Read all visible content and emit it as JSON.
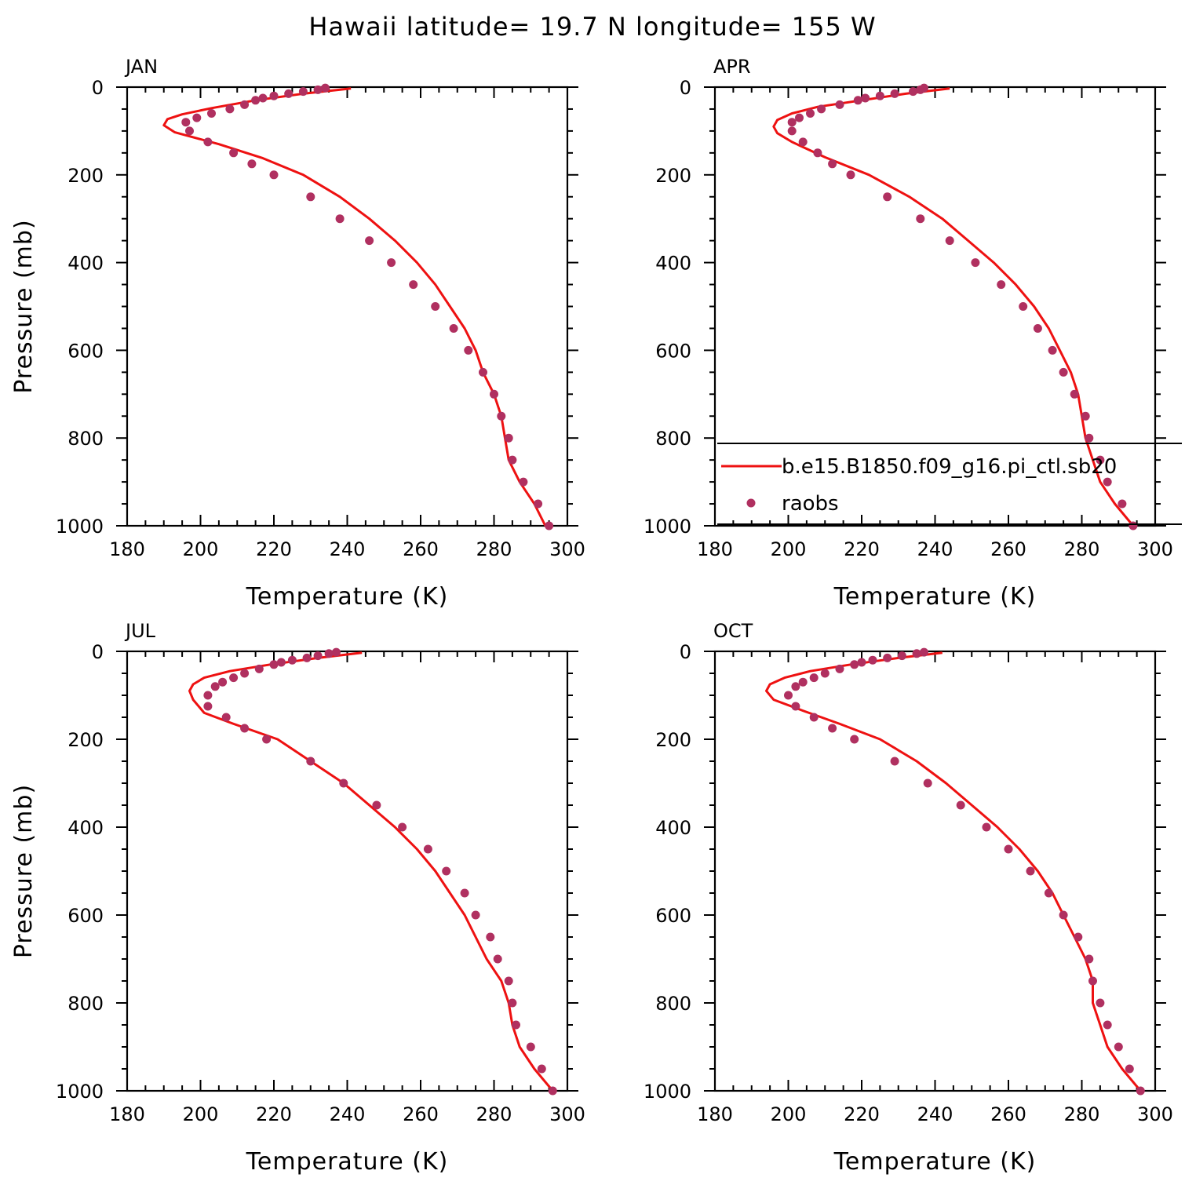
{
  "figure": {
    "title": "Hawaii  latitude= 19.7 N longitude= 155 W"
  },
  "colors": {
    "model": "#ee1111",
    "obs": "#b03060"
  },
  "chart_data": [
    {
      "type": "scatter",
      "panel": "JAN",
      "xlabel": "Temperature (K)",
      "ylabel": "Pressure (mb)",
      "xlim": [
        180,
        300
      ],
      "ylim": [
        1000,
        0
      ],
      "y_inverted": true,
      "xticks": [
        180,
        200,
        220,
        240,
        260,
        280,
        300
      ],
      "yticks": [
        0,
        200,
        400,
        600,
        800,
        1000
      ],
      "series": [
        {
          "kind": "line",
          "points": [
            [
              241,
              3
            ],
            [
              228,
              15
            ],
            [
              215,
              30
            ],
            [
              203,
              48
            ],
            [
              195,
              62
            ],
            [
              191,
              73
            ],
            [
              190,
              87
            ],
            [
              193,
              103
            ],
            [
              205,
              130
            ],
            [
              217,
              162
            ],
            [
              228,
              200
            ],
            [
              238,
              250
            ],
            [
              246,
              300
            ],
            [
              253,
              350
            ],
            [
              259,
              400
            ],
            [
              264,
              450
            ],
            [
              268,
              500
            ],
            [
              272,
              550
            ],
            [
              275,
              600
            ],
            [
              277,
              650
            ],
            [
              280,
              700
            ],
            [
              282,
              750
            ],
            [
              283,
              800
            ],
            [
              284,
              850
            ],
            [
              287,
              900
            ],
            [
              291,
              950
            ],
            [
              294,
              1000
            ]
          ]
        },
        {
          "kind": "points",
          "points": [
            [
              234,
              2
            ],
            [
              232,
              6
            ],
            [
              228,
              10
            ],
            [
              224,
              15
            ],
            [
              220,
              20
            ],
            [
              217,
              25
            ],
            [
              215,
              30
            ],
            [
              212,
              40
            ],
            [
              208,
              50
            ],
            [
              203,
              60
            ],
            [
              199,
              70
            ],
            [
              196,
              80
            ],
            [
              197,
              100
            ],
            [
              202,
              125
            ],
            [
              209,
              150
            ],
            [
              214,
              175
            ],
            [
              220,
              200
            ],
            [
              230,
              250
            ],
            [
              238,
              300
            ],
            [
              246,
              350
            ],
            [
              252,
              400
            ],
            [
              258,
              450
            ],
            [
              264,
              500
            ],
            [
              269,
              550
            ],
            [
              273,
              600
            ],
            [
              277,
              650
            ],
            [
              280,
              700
            ],
            [
              282,
              750
            ],
            [
              284,
              800
            ],
            [
              285,
              850
            ],
            [
              288,
              900
            ],
            [
              292,
              950
            ],
            [
              295,
              1000
            ]
          ]
        }
      ]
    },
    {
      "type": "scatter",
      "panel": "APR",
      "xlabel": "Temperature (K)",
      "ylabel": "",
      "xlim": [
        180,
        300
      ],
      "ylim": [
        1000,
        0
      ],
      "y_inverted": true,
      "xticks": [
        180,
        200,
        220,
        240,
        260,
        280,
        300
      ],
      "yticks": [
        0,
        200,
        400,
        600,
        800,
        1000
      ],
      "series": [
        {
          "kind": "line",
          "name": "b.e15.B1850.f09_g16.pi_ctl.sb20",
          "points": [
            [
              244,
              3
            ],
            [
              232,
              15
            ],
            [
              220,
              30
            ],
            [
              208,
              45
            ],
            [
              201,
              60
            ],
            [
              197,
              75
            ],
            [
              196,
              90
            ],
            [
              197,
              105
            ],
            [
              201,
              125
            ],
            [
              210,
              160
            ],
            [
              222,
              200
            ],
            [
              233,
              250
            ],
            [
              242,
              300
            ],
            [
              249,
              350
            ],
            [
              256,
              400
            ],
            [
              262,
              450
            ],
            [
              267,
              500
            ],
            [
              271,
              550
            ],
            [
              274,
              600
            ],
            [
              277,
              650
            ],
            [
              279,
              700
            ],
            [
              280,
              750
            ],
            [
              281,
              800
            ],
            [
              283,
              850
            ],
            [
              285,
              900
            ],
            [
              289,
              950
            ],
            [
              294,
              1000
            ]
          ]
        },
        {
          "kind": "points",
          "name": "raobs",
          "points": [
            [
              237,
              2
            ],
            [
              236,
              6
            ],
            [
              234,
              10
            ],
            [
              229,
              15
            ],
            [
              225,
              20
            ],
            [
              221,
              25
            ],
            [
              219,
              30
            ],
            [
              214,
              40
            ],
            [
              209,
              50
            ],
            [
              206,
              60
            ],
            [
              203,
              70
            ],
            [
              201,
              80
            ],
            [
              201,
              100
            ],
            [
              204,
              125
            ],
            [
              208,
              150
            ],
            [
              212,
              175
            ],
            [
              217,
              200
            ],
            [
              227,
              250
            ],
            [
              236,
              300
            ],
            [
              244,
              350
            ],
            [
              251,
              400
            ],
            [
              258,
              450
            ],
            [
              264,
              500
            ],
            [
              268,
              550
            ],
            [
              272,
              600
            ],
            [
              275,
              650
            ],
            [
              278,
              700
            ],
            [
              281,
              750
            ],
            [
              282,
              800
            ],
            [
              285,
              850
            ],
            [
              287,
              900
            ],
            [
              291,
              950
            ],
            [
              294,
              1000
            ]
          ]
        }
      ],
      "legend": "bottom"
    },
    {
      "type": "scatter",
      "panel": "JUL",
      "xlabel": "Temperature (K)",
      "ylabel": "Pressure (mb)",
      "xlim": [
        180,
        300
      ],
      "ylim": [
        1000,
        0
      ],
      "y_inverted": true,
      "xticks": [
        180,
        200,
        220,
        240,
        260,
        280,
        300
      ],
      "yticks": [
        0,
        200,
        400,
        600,
        800,
        1000
      ],
      "series": [
        {
          "kind": "line",
          "points": [
            [
              244,
              3
            ],
            [
              232,
              15
            ],
            [
              219,
              30
            ],
            [
              208,
              45
            ],
            [
              201,
              60
            ],
            [
              198,
              75
            ],
            [
              197,
              90
            ],
            [
              198,
              110
            ],
            [
              201,
              140
            ],
            [
              209,
              165
            ],
            [
              221,
              200
            ],
            [
              230,
              250
            ],
            [
              239,
              300
            ],
            [
              246,
              350
            ],
            [
              253,
              400
            ],
            [
              259,
              450
            ],
            [
              264,
              500
            ],
            [
              268,
              550
            ],
            [
              272,
              600
            ],
            [
              275,
              650
            ],
            [
              278,
              700
            ],
            [
              282,
              750
            ],
            [
              284,
              800
            ],
            [
              285,
              850
            ],
            [
              287,
              900
            ],
            [
              291,
              950
            ],
            [
              296,
              1000
            ]
          ]
        },
        {
          "kind": "points",
          "points": [
            [
              237,
              2
            ],
            [
              235,
              5
            ],
            [
              232,
              10
            ],
            [
              229,
              15
            ],
            [
              225,
              20
            ],
            [
              222,
              25
            ],
            [
              220,
              30
            ],
            [
              216,
              40
            ],
            [
              212,
              50
            ],
            [
              209,
              60
            ],
            [
              206,
              70
            ],
            [
              204,
              80
            ],
            [
              202,
              100
            ],
            [
              202,
              125
            ],
            [
              207,
              150
            ],
            [
              212,
              175
            ],
            [
              218,
              200
            ],
            [
              230,
              250
            ],
            [
              239,
              300
            ],
            [
              248,
              350
            ],
            [
              255,
              400
            ],
            [
              262,
              450
            ],
            [
              267,
              500
            ],
            [
              272,
              550
            ],
            [
              275,
              600
            ],
            [
              279,
              650
            ],
            [
              281,
              700
            ],
            [
              284,
              750
            ],
            [
              285,
              800
            ],
            [
              286,
              850
            ],
            [
              290,
              900
            ],
            [
              293,
              950
            ],
            [
              296,
              1000
            ]
          ]
        }
      ]
    },
    {
      "type": "scatter",
      "panel": "OCT",
      "xlabel": "Temperature (K)",
      "ylabel": "",
      "xlim": [
        180,
        300
      ],
      "ylim": [
        1000,
        0
      ],
      "y_inverted": true,
      "xticks": [
        180,
        200,
        220,
        240,
        260,
        280,
        300
      ],
      "yticks": [
        0,
        200,
        400,
        600,
        800,
        1000
      ],
      "series": [
        {
          "kind": "line",
          "points": [
            [
              242,
              3
            ],
            [
              230,
              15
            ],
            [
              217,
              30
            ],
            [
              206,
              45
            ],
            [
              199,
              60
            ],
            [
              195,
              75
            ],
            [
              194,
              90
            ],
            [
              196,
              110
            ],
            [
              204,
              135
            ],
            [
              214,
              165
            ],
            [
              225,
              200
            ],
            [
              235,
              250
            ],
            [
              243,
              300
            ],
            [
              250,
              350
            ],
            [
              257,
              400
            ],
            [
              263,
              450
            ],
            [
              268,
              500
            ],
            [
              272,
              550
            ],
            [
              275,
              600
            ],
            [
              278,
              650
            ],
            [
              281,
              700
            ],
            [
              283,
              750
            ],
            [
              283,
              800
            ],
            [
              285,
              850
            ],
            [
              287,
              900
            ],
            [
              291,
              950
            ],
            [
              296,
              1000
            ]
          ]
        },
        {
          "kind": "points",
          "points": [
            [
              237,
              2
            ],
            [
              235,
              5
            ],
            [
              231,
              10
            ],
            [
              227,
              15
            ],
            [
              223,
              20
            ],
            [
              220,
              25
            ],
            [
              218,
              30
            ],
            [
              214,
              40
            ],
            [
              210,
              50
            ],
            [
              207,
              60
            ],
            [
              204,
              70
            ],
            [
              202,
              80
            ],
            [
              200,
              100
            ],
            [
              202,
              125
            ],
            [
              207,
              150
            ],
            [
              212,
              175
            ],
            [
              218,
              200
            ],
            [
              229,
              250
            ],
            [
              238,
              300
            ],
            [
              247,
              350
            ],
            [
              254,
              400
            ],
            [
              260,
              450
            ],
            [
              266,
              500
            ],
            [
              271,
              550
            ],
            [
              275,
              600
            ],
            [
              279,
              650
            ],
            [
              282,
              700
            ],
            [
              283,
              750
            ],
            [
              285,
              800
            ],
            [
              287,
              850
            ],
            [
              290,
              900
            ],
            [
              293,
              950
            ],
            [
              296,
              1000
            ]
          ]
        }
      ]
    }
  ]
}
